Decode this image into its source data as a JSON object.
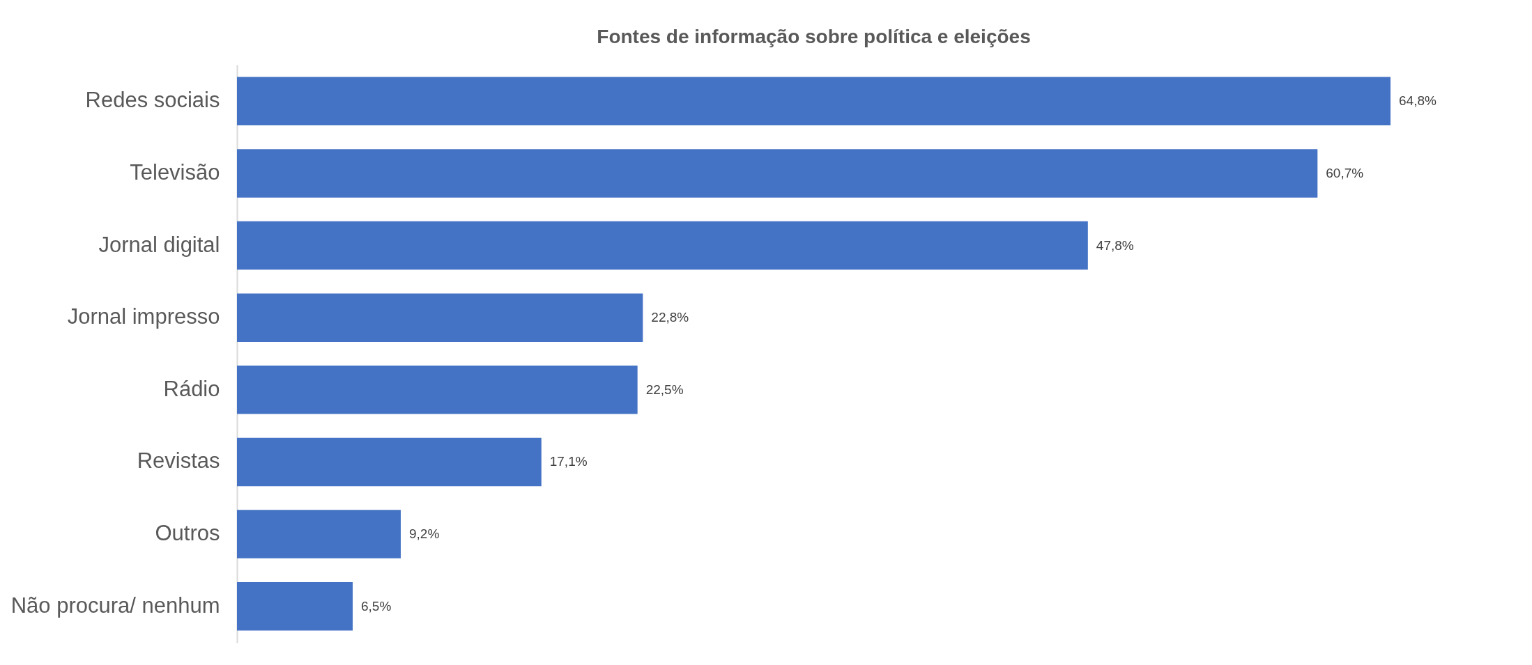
{
  "chart_data": {
    "type": "bar",
    "orientation": "horizontal",
    "title": "Fontes de informação sobre política e eleições",
    "categories": [
      "Redes sociais",
      "Televisão",
      "Jornal digital",
      "Jornal impresso",
      "Rádio",
      "Revistas",
      "Outros",
      "Não procura/ nenhum"
    ],
    "values": [
      64.8,
      60.7,
      47.8,
      22.8,
      22.5,
      17.1,
      9.2,
      6.5
    ],
    "value_labels": [
      "64,8%",
      "60,7%",
      "47,8%",
      "22,8%",
      "22,5%",
      "17,1%",
      "9,2%",
      "6,5%"
    ],
    "color": "#4472c4"
  }
}
